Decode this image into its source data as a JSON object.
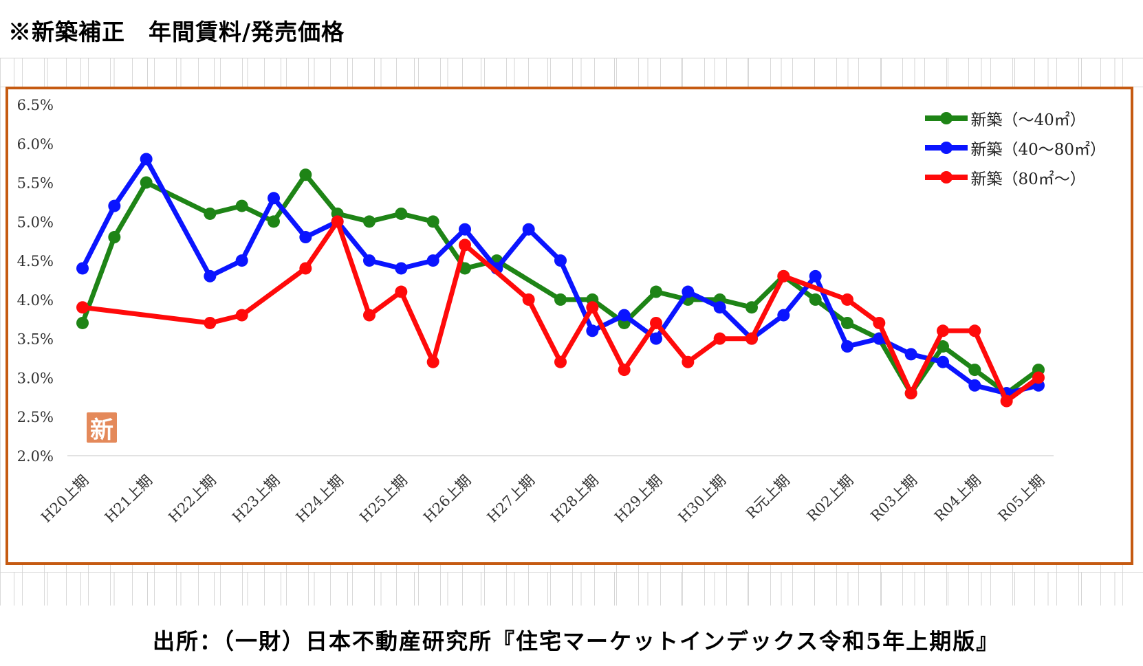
{
  "header": {
    "title": "※新築補正　年間賃料/発売価格"
  },
  "footer": {
    "source": "出所：（一財）日本不動産研究所『住宅マーケットインデックス令和5年上期版』"
  },
  "stamp": {
    "text": "新",
    "color": "#e4895a"
  },
  "colors": {
    "frame": "#c55a11",
    "grid": "#d9d9d9"
  },
  "chart_data": {
    "type": "line",
    "title": "",
    "xlabel": "",
    "ylabel": "",
    "ylim": [
      2.0,
      6.5
    ],
    "yticks": [
      "2.0%",
      "2.5%",
      "3.0%",
      "3.5%",
      "4.0%",
      "4.5%",
      "5.0%",
      "5.5%",
      "6.0%",
      "6.5%"
    ],
    "x_tick_labels": [
      "H20上期",
      "H21上期",
      "H22上期",
      "H23上期",
      "H24上期",
      "H25上期",
      "H26上期",
      "H27上期",
      "H28上期",
      "H29上期",
      "H30上期",
      "R元上期",
      "R02上期",
      "R03上期",
      "R04上期",
      "R05上期"
    ],
    "legend_position": "top-right",
    "grid": "horizontal-baseline-only",
    "series": [
      {
        "name": "新築（～40㎡）",
        "color": "#1e8416",
        "values": [
          3.7,
          4.8,
          5.5,
          null,
          5.1,
          5.2,
          5.0,
          5.6,
          5.1,
          5.0,
          5.1,
          5.0,
          4.4,
          4.5,
          null,
          4.0,
          4.0,
          3.7,
          4.1,
          4.0,
          4.0,
          3.9,
          4.3,
          4.0,
          3.7,
          3.5,
          2.8,
          3.4,
          3.1,
          2.8,
          3.1
        ]
      },
      {
        "name": "新築（40～80㎡）",
        "color": "#0a14ff",
        "values": [
          4.4,
          5.2,
          5.8,
          null,
          4.3,
          4.5,
          5.3,
          4.8,
          5.0,
          4.5,
          4.4,
          4.5,
          4.9,
          4.4,
          4.9,
          4.5,
          3.6,
          3.8,
          3.5,
          4.1,
          3.9,
          3.5,
          3.8,
          4.3,
          3.4,
          3.5,
          3.3,
          3.2,
          2.9,
          2.8,
          2.9
        ]
      },
      {
        "name": "新築（80㎡～）",
        "color": "#ff0a0a",
        "values": [
          3.9,
          null,
          null,
          null,
          3.7,
          3.8,
          null,
          4.4,
          5.0,
          3.8,
          4.1,
          3.2,
          4.7,
          null,
          4.0,
          3.2,
          3.9,
          3.1,
          3.7,
          3.2,
          3.5,
          3.5,
          4.3,
          null,
          4.0,
          3.7,
          2.8,
          3.6,
          3.6,
          2.7,
          3.0
        ]
      }
    ]
  }
}
